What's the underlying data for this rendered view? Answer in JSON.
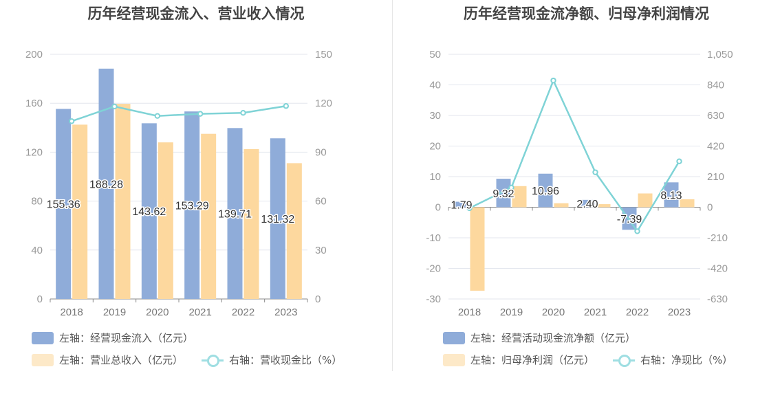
{
  "colors": {
    "blue": "#8facd9",
    "orange": "#fdd89e",
    "line": "#7fd3d6",
    "axis": "#999999",
    "grid": "#e6e9f0"
  },
  "chart_data": [
    {
      "id": "left",
      "type": "bar",
      "title": "历年经营现金流入、营业收入情况",
      "categories": [
        "2018",
        "2019",
        "2020",
        "2021",
        "2022",
        "2023"
      ],
      "y_left": {
        "ticks": [
          "0",
          "40",
          "80",
          "120",
          "160",
          "200"
        ],
        "ylim": [
          0,
          200
        ]
      },
      "y_right": {
        "ticks": [
          "0",
          "30",
          "60",
          "90",
          "120",
          "150"
        ],
        "ylim": [
          0,
          150
        ]
      },
      "series": [
        {
          "name": "左轴：经营现金流入（亿元）",
          "axis": "left",
          "kind": "bar",
          "color": "#8facd9",
          "values": [
            155.36,
            188.28,
            143.62,
            153.29,
            139.71,
            131.32
          ],
          "labels": [
            "155.36",
            "188.28",
            "143.62",
            "153.29",
            "139.71",
            "131.32"
          ]
        },
        {
          "name": "左轴：营业总收入（亿元）",
          "axis": "left",
          "kind": "bar",
          "color": "#fdd89e",
          "values": [
            142.5,
            159.5,
            128.0,
            135.0,
            122.5,
            111.0
          ]
        },
        {
          "name": "右轴：营收现金比（%）",
          "axis": "right",
          "kind": "line",
          "color": "#7fd3d6",
          "values": [
            109.0,
            118.0,
            112.2,
            113.5,
            114.1,
            118.3
          ]
        }
      ],
      "grid": true,
      "legend_position": "bottom-left"
    },
    {
      "id": "right",
      "type": "bar",
      "title": "历年经营现金流净额、归母净利润情况",
      "categories": [
        "2018",
        "2019",
        "2020",
        "2021",
        "2022",
        "2023"
      ],
      "y_left": {
        "ticks": [
          "-30",
          "-20",
          "-10",
          "0",
          "10",
          "20",
          "30",
          "40",
          "50"
        ],
        "ylim": [
          -30,
          50
        ]
      },
      "y_right": {
        "ticks": [
          "-630",
          "-420",
          "-210",
          "0",
          "210",
          "420",
          "630",
          "840",
          "1,050"
        ],
        "ylim": [
          -630,
          1050
        ]
      },
      "series": [
        {
          "name": "左轴：经营活动现金流净额（亿元）",
          "axis": "left",
          "kind": "bar",
          "color": "#8facd9",
          "values": [
            1.79,
            9.32,
            10.96,
            2.4,
            -7.39,
            8.13
          ],
          "labels": [
            "1.79",
            "9.32",
            "10.96",
            "2.40",
            "-7.39",
            "8.13"
          ]
        },
        {
          "name": "左轴：归母净利润（亿元）",
          "axis": "left",
          "kind": "bar",
          "color": "#fdd89e",
          "values": [
            -27.3,
            6.9,
            1.3,
            1.0,
            4.5,
            2.6
          ]
        },
        {
          "name": "右轴：净现比（%）",
          "axis": "right",
          "kind": "line",
          "color": "#7fd3d6",
          "values": [
            -6.6,
            135,
            870,
            240,
            -165,
            315
          ]
        }
      ],
      "grid": true,
      "legend_position": "bottom-left"
    }
  ]
}
